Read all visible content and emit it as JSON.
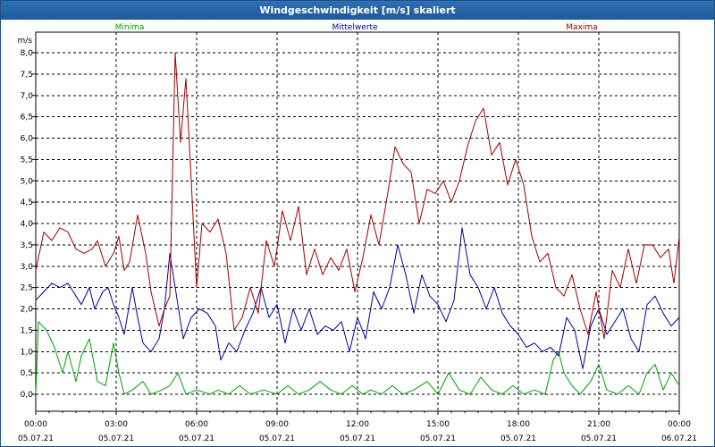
{
  "window": {
    "title": "Windgeschwindigkeit [m/s] skaliert"
  },
  "chart_data": {
    "type": "line",
    "title": "Windgeschwindigkeit [m/s] skaliert",
    "ylabel": "m/s",
    "xlabel": "",
    "ylim": [
      -0.4,
      8.3
    ],
    "xlim": [
      0,
      24
    ],
    "grid": true,
    "legend_placement": "top",
    "y_ticks": [
      "0,0",
      "0,5",
      "1,0",
      "1,5",
      "2,0",
      "2,5",
      "3,0",
      "3,5",
      "4,0",
      "4,5",
      "5,0",
      "5,5",
      "6,0",
      "6,5",
      "7,0",
      "7,5",
      "8,0"
    ],
    "x_ticks": [
      {
        "time": "00:00",
        "date": "05.07.21"
      },
      {
        "time": "03:00",
        "date": "05.07.21"
      },
      {
        "time": "06:00",
        "date": "05.07.21"
      },
      {
        "time": "09:00",
        "date": "05.07.21"
      },
      {
        "time": "12:00",
        "date": "05.07.21"
      },
      {
        "time": "15:00",
        "date": "05.07.21"
      },
      {
        "time": "18:00",
        "date": "05.07.21"
      },
      {
        "time": "21:00",
        "date": "05.07.21"
      },
      {
        "time": "00:00",
        "date": "06.07.21"
      }
    ],
    "series": [
      {
        "name": "Minima",
        "color": "#00a000",
        "points": [
          [
            0,
            0.0
          ],
          [
            0.1,
            1.7
          ],
          [
            0.4,
            1.5
          ],
          [
            0.7,
            1.1
          ],
          [
            1.0,
            0.5
          ],
          [
            1.2,
            1.0
          ],
          [
            1.5,
            0.3
          ],
          [
            1.7,
            0.9
          ],
          [
            2.0,
            1.3
          ],
          [
            2.3,
            0.3
          ],
          [
            2.6,
            0.2
          ],
          [
            2.9,
            1.2
          ],
          [
            3.1,
            0.5
          ],
          [
            3.3,
            0.0
          ],
          [
            3.6,
            0.1
          ],
          [
            4.0,
            0.3
          ],
          [
            4.3,
            0.0
          ],
          [
            4.7,
            0.1
          ],
          [
            5.0,
            0.2
          ],
          [
            5.3,
            0.5
          ],
          [
            5.6,
            0.0
          ],
          [
            6.0,
            0.1
          ],
          [
            6.5,
            0.0
          ],
          [
            6.8,
            0.1
          ],
          [
            7.2,
            0.0
          ],
          [
            7.6,
            0.2
          ],
          [
            8.0,
            0.0
          ],
          [
            8.5,
            0.1
          ],
          [
            9.0,
            0.0
          ],
          [
            9.4,
            0.2
          ],
          [
            9.8,
            0.0
          ],
          [
            10.2,
            0.1
          ],
          [
            10.6,
            0.3
          ],
          [
            11.0,
            0.1
          ],
          [
            11.4,
            0.0
          ],
          [
            11.8,
            0.2
          ],
          [
            12.2,
            0.0
          ],
          [
            12.5,
            0.1
          ],
          [
            12.9,
            0.0
          ],
          [
            13.3,
            0.2
          ],
          [
            13.7,
            0.0
          ],
          [
            14.1,
            0.1
          ],
          [
            14.6,
            0.3
          ],
          [
            15.0,
            0.0
          ],
          [
            15.4,
            0.5
          ],
          [
            15.8,
            0.1
          ],
          [
            16.2,
            0.0
          ],
          [
            16.6,
            0.4
          ],
          [
            17.0,
            0.1
          ],
          [
            17.4,
            0.0
          ],
          [
            17.8,
            0.2
          ],
          [
            18.2,
            0.0
          ],
          [
            18.6,
            0.1
          ],
          [
            19.0,
            0.0
          ],
          [
            19.3,
            0.8
          ],
          [
            19.5,
            1.0
          ],
          [
            19.7,
            0.5
          ],
          [
            20.0,
            0.2
          ],
          [
            20.3,
            0.0
          ],
          [
            20.7,
            0.3
          ],
          [
            21.0,
            0.7
          ],
          [
            21.3,
            0.1
          ],
          [
            21.7,
            0.0
          ],
          [
            22.1,
            0.2
          ],
          [
            22.5,
            0.0
          ],
          [
            22.8,
            0.5
          ],
          [
            23.1,
            0.7
          ],
          [
            23.4,
            0.1
          ],
          [
            23.7,
            0.5
          ],
          [
            24.0,
            0.2
          ]
        ]
      },
      {
        "name": "Mittelwerte",
        "color": "#0000a0",
        "points": [
          [
            0,
            2.2
          ],
          [
            0.3,
            2.4
          ],
          [
            0.6,
            2.6
          ],
          [
            0.9,
            2.5
          ],
          [
            1.2,
            2.6
          ],
          [
            1.5,
            2.3
          ],
          [
            1.7,
            2.1
          ],
          [
            2.0,
            2.5
          ],
          [
            2.2,
            2.0
          ],
          [
            2.5,
            2.4
          ],
          [
            2.7,
            2.5
          ],
          [
            2.9,
            2.1
          ],
          [
            3.1,
            1.8
          ],
          [
            3.3,
            1.4
          ],
          [
            3.6,
            2.5
          ],
          [
            3.8,
            1.8
          ],
          [
            4.0,
            1.2
          ],
          [
            4.3,
            1.0
          ],
          [
            4.6,
            1.3
          ],
          [
            4.8,
            2.0
          ],
          [
            5.0,
            3.3
          ],
          [
            5.2,
            2.5
          ],
          [
            5.5,
            1.3
          ],
          [
            5.8,
            1.8
          ],
          [
            6.1,
            2.0
          ],
          [
            6.4,
            1.9
          ],
          [
            6.7,
            1.6
          ],
          [
            6.9,
            0.8
          ],
          [
            7.2,
            1.2
          ],
          [
            7.5,
            1.0
          ],
          [
            7.8,
            1.5
          ],
          [
            8.1,
            1.9
          ],
          [
            8.4,
            2.5
          ],
          [
            8.7,
            1.8
          ],
          [
            9.0,
            2.1
          ],
          [
            9.3,
            1.2
          ],
          [
            9.6,
            2.0
          ],
          [
            9.9,
            1.5
          ],
          [
            10.2,
            2.0
          ],
          [
            10.5,
            1.4
          ],
          [
            10.8,
            1.6
          ],
          [
            11.1,
            1.5
          ],
          [
            11.4,
            1.7
          ],
          [
            11.7,
            1.0
          ],
          [
            12.0,
            1.8
          ],
          [
            12.3,
            1.3
          ],
          [
            12.6,
            2.4
          ],
          [
            12.9,
            2.0
          ],
          [
            13.2,
            2.5
          ],
          [
            13.5,
            3.5
          ],
          [
            13.8,
            2.8
          ],
          [
            14.1,
            1.9
          ],
          [
            14.4,
            2.8
          ],
          [
            14.7,
            2.3
          ],
          [
            15.0,
            2.1
          ],
          [
            15.3,
            1.7
          ],
          [
            15.6,
            2.2
          ],
          [
            15.9,
            3.9
          ],
          [
            16.2,
            2.8
          ],
          [
            16.5,
            2.5
          ],
          [
            16.8,
            2.0
          ],
          [
            17.1,
            2.5
          ],
          [
            17.4,
            1.9
          ],
          [
            17.7,
            1.6
          ],
          [
            18.0,
            1.4
          ],
          [
            18.3,
            1.1
          ],
          [
            18.6,
            1.2
          ],
          [
            18.9,
            1.0
          ],
          [
            19.2,
            1.1
          ],
          [
            19.5,
            0.9
          ],
          [
            19.8,
            1.8
          ],
          [
            20.1,
            1.5
          ],
          [
            20.4,
            0.6
          ],
          [
            20.7,
            1.6
          ],
          [
            21.0,
            2.0
          ],
          [
            21.3,
            1.4
          ],
          [
            21.6,
            1.7
          ],
          [
            21.9,
            2.0
          ],
          [
            22.2,
            1.3
          ],
          [
            22.5,
            1.0
          ],
          [
            22.8,
            2.1
          ],
          [
            23.1,
            2.3
          ],
          [
            23.4,
            1.9
          ],
          [
            23.7,
            1.6
          ],
          [
            24.0,
            1.8
          ]
        ]
      },
      {
        "name": "Maxima",
        "color": "#a00000",
        "points": [
          [
            0,
            2.9
          ],
          [
            0.3,
            3.8
          ],
          [
            0.6,
            3.6
          ],
          [
            0.9,
            3.9
          ],
          [
            1.2,
            3.8
          ],
          [
            1.5,
            3.4
          ],
          [
            1.8,
            3.3
          ],
          [
            2.1,
            3.4
          ],
          [
            2.3,
            3.6
          ],
          [
            2.6,
            3.0
          ],
          [
            2.9,
            3.3
          ],
          [
            3.1,
            3.7
          ],
          [
            3.3,
            2.9
          ],
          [
            3.5,
            3.1
          ],
          [
            3.8,
            4.2
          ],
          [
            4.1,
            3.3
          ],
          [
            4.3,
            2.4
          ],
          [
            4.6,
            1.6
          ],
          [
            4.8,
            2.0
          ],
          [
            5.0,
            2.3
          ],
          [
            5.2,
            8.0
          ],
          [
            5.4,
            5.9
          ],
          [
            5.6,
            7.4
          ],
          [
            5.8,
            5.0
          ],
          [
            6.0,
            2.5
          ],
          [
            6.2,
            4.0
          ],
          [
            6.5,
            3.8
          ],
          [
            6.8,
            4.1
          ],
          [
            7.1,
            3.3
          ],
          [
            7.4,
            1.5
          ],
          [
            7.7,
            1.8
          ],
          [
            8.0,
            2.5
          ],
          [
            8.3,
            1.9
          ],
          [
            8.6,
            3.6
          ],
          [
            8.9,
            3.0
          ],
          [
            9.2,
            4.3
          ],
          [
            9.5,
            3.6
          ],
          [
            9.8,
            4.4
          ],
          [
            10.1,
            2.8
          ],
          [
            10.4,
            3.4
          ],
          [
            10.7,
            2.8
          ],
          [
            11.0,
            3.2
          ],
          [
            11.3,
            2.9
          ],
          [
            11.6,
            3.4
          ],
          [
            11.9,
            2.4
          ],
          [
            12.2,
            3.2
          ],
          [
            12.5,
            4.2
          ],
          [
            12.8,
            3.5
          ],
          [
            13.1,
            4.6
          ],
          [
            13.4,
            5.8
          ],
          [
            13.7,
            5.4
          ],
          [
            14.0,
            5.2
          ],
          [
            14.3,
            4.0
          ],
          [
            14.6,
            4.8
          ],
          [
            14.9,
            4.7
          ],
          [
            15.2,
            5.0
          ],
          [
            15.5,
            4.5
          ],
          [
            15.8,
            5.0
          ],
          [
            16.1,
            5.8
          ],
          [
            16.4,
            6.4
          ],
          [
            16.7,
            6.7
          ],
          [
            17.0,
            5.6
          ],
          [
            17.3,
            5.9
          ],
          [
            17.6,
            4.9
          ],
          [
            17.9,
            5.5
          ],
          [
            18.2,
            4.9
          ],
          [
            18.5,
            3.7
          ],
          [
            18.8,
            3.1
          ],
          [
            19.1,
            3.3
          ],
          [
            19.4,
            2.5
          ],
          [
            19.7,
            2.3
          ],
          [
            20.0,
            2.8
          ],
          [
            20.3,
            2.0
          ],
          [
            20.6,
            1.4
          ],
          [
            20.9,
            2.4
          ],
          [
            21.2,
            1.3
          ],
          [
            21.5,
            2.9
          ],
          [
            21.8,
            2.5
          ],
          [
            22.1,
            3.4
          ],
          [
            22.4,
            2.6
          ],
          [
            22.7,
            3.5
          ],
          [
            23.0,
            3.5
          ],
          [
            23.3,
            3.2
          ],
          [
            23.6,
            3.4
          ],
          [
            23.8,
            2.6
          ],
          [
            24.0,
            3.7
          ]
        ]
      }
    ]
  }
}
